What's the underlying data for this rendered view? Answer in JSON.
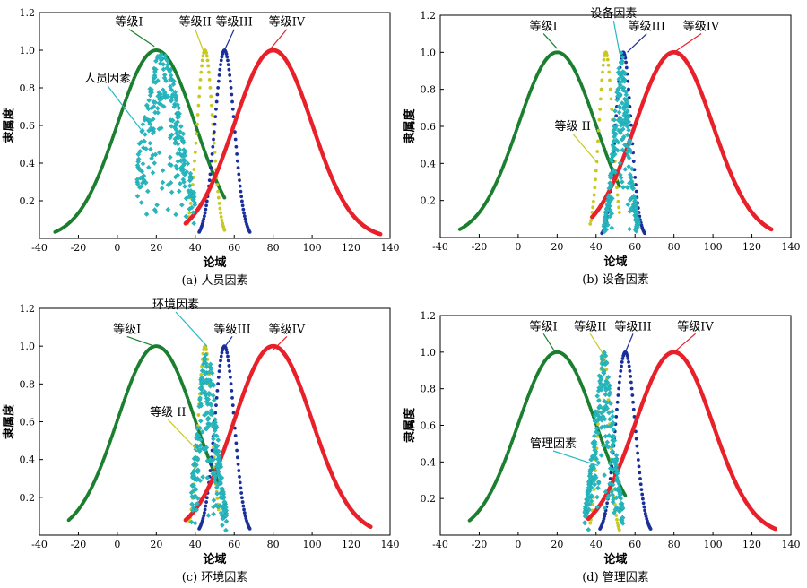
{
  "chart_data": [
    {
      "type": "scatter",
      "caption": "(a) 人员因素",
      "xlabel": "论域",
      "ylabel": "隶属度",
      "xlim": [
        -40,
        140
      ],
      "ylim": [
        0,
        1.2
      ],
      "xticks": [
        -40,
        -20,
        0,
        20,
        40,
        60,
        80,
        100,
        120,
        140
      ],
      "yticks": [
        0.2,
        0.4,
        0.6,
        0.8,
        1.0,
        1.2
      ],
      "yticklabels": [
        "0.2",
        "0.4",
        "0.6",
        "0.8",
        "1.0",
        "1.2"
      ],
      "grade_curves": [
        {
          "label": "等级I",
          "mu": 20,
          "sigma": 20,
          "range": [
            -32,
            55
          ],
          "color": "#1a7f2e"
        },
        {
          "label": "等级II",
          "mu": 45,
          "sigma": 4,
          "range": [
            36,
            55
          ],
          "color": "#c8c81e"
        },
        {
          "label": "等级III",
          "mu": 55,
          "sigma": 5,
          "range": [
            42,
            68
          ],
          "color": "#1a2f9a"
        },
        {
          "label": "等级IV",
          "mu": 80,
          "sigma": 20,
          "range": [
            35,
            135
          ],
          "color": "#e8202a"
        }
      ],
      "factor": {
        "label": "人员因素",
        "mu": 23,
        "sigma": 10,
        "x_range": [
          10,
          40
        ],
        "color": "#25b8c0"
      },
      "annotations": [
        {
          "text": "等级I",
          "x": 6,
          "y": 1.13,
          "ax": 19,
          "ay": 1.02
        },
        {
          "text": "等级II",
          "x": 40,
          "y": 1.13,
          "ax": 44,
          "ay": 1.0
        },
        {
          "text": "等级III",
          "x": 60,
          "y": 1.13,
          "ax": 55,
          "ay": 1.0
        },
        {
          "text": "等级IV",
          "x": 87,
          "y": 1.13,
          "ax": 78,
          "ay": 1.0
        },
        {
          "text": "人员因素",
          "x": -5,
          "y": 0.83,
          "ax": 12,
          "ay": 0.58
        }
      ]
    },
    {
      "type": "scatter",
      "caption": "(b) 设备因素",
      "xlabel": "论域",
      "ylabel": "隶属度",
      "xlim": [
        -40,
        140
      ],
      "ylim": [
        0,
        1.2
      ],
      "xticks": [
        -40,
        -20,
        0,
        20,
        40,
        60,
        80,
        100,
        120,
        140
      ],
      "yticks": [
        0.2,
        0.4,
        0.6,
        0.8,
        1.0,
        1.2
      ],
      "yticklabels": [
        "0.2",
        "0.4",
        "0.6",
        "0.8",
        "1.0",
        "1.2"
      ],
      "grade_curves": [
        {
          "label": "等级I",
          "mu": 20,
          "sigma": 20,
          "range": [
            -30,
            52
          ],
          "color": "#1a7f2e"
        },
        {
          "label": "等级II",
          "mu": 45,
          "sigma": 3.5,
          "range": [
            37,
            52
          ],
          "color": "#c8c81e"
        },
        {
          "label": "等级III",
          "mu": 54,
          "sigma": 4,
          "range": [
            43,
            65
          ],
          "color": "#1a2f9a"
        },
        {
          "label": "等级IV",
          "mu": 80,
          "sigma": 20,
          "range": [
            38,
            130
          ],
          "color": "#e8202a"
        }
      ],
      "factor": {
        "label": "设备因素",
        "mu": 53,
        "sigma": 4,
        "x_range": [
          44,
          62
        ],
        "color": "#25b8c0"
      },
      "annotations": [
        {
          "text": "等级I",
          "x": 13,
          "y": 1.12,
          "ax": 20,
          "ay": 1.02
        },
        {
          "text": "设备因素",
          "x": 49,
          "y": 1.19,
          "ax": 52,
          "ay": 1.0
        },
        {
          "text": "等级III",
          "x": 66,
          "y": 1.12,
          "ax": 56,
          "ay": 1.0
        },
        {
          "text": "等级IV",
          "x": 94,
          "y": 1.12,
          "ax": 80,
          "ay": 1.0
        },
        {
          "text": "等级 II",
          "x": 28,
          "y": 0.58,
          "ax": 41,
          "ay": 0.4
        }
      ]
    },
    {
      "type": "scatter",
      "caption": "(c) 环境因素",
      "xlabel": "论域",
      "ylabel": "隶属度",
      "xlim": [
        -40,
        140
      ],
      "ylim": [
        0,
        1.2
      ],
      "xticks": [
        -40,
        -20,
        0,
        20,
        40,
        60,
        80,
        100,
        120,
        140
      ],
      "yticks": [
        0.2,
        0.4,
        0.6,
        0.8,
        1.0,
        1.2
      ],
      "yticklabels": [
        "0.2",
        "0.4",
        "0.6",
        "0.8",
        "1.0",
        "1.2"
      ],
      "grade_curves": [
        {
          "label": "等级I",
          "mu": 20,
          "sigma": 20,
          "range": [
            -25,
            52
          ],
          "color": "#1a7f2e"
        },
        {
          "label": "等级II",
          "mu": 45,
          "sigma": 3.5,
          "range": [
            37,
            52
          ],
          "color": "#c8c81e"
        },
        {
          "label": "等级III",
          "mu": 55,
          "sigma": 5,
          "range": [
            42,
            68
          ],
          "color": "#1a2f9a"
        },
        {
          "label": "等级IV",
          "mu": 80,
          "sigma": 20,
          "range": [
            35,
            130
          ],
          "color": "#e8202a"
        }
      ],
      "factor": {
        "label": "环境因素",
        "mu": 46,
        "sigma": 5,
        "x_range": [
          38,
          56
        ],
        "color": "#25b8c0"
      },
      "annotations": [
        {
          "text": "等级I",
          "x": 5,
          "y": 1.07,
          "ax": 19,
          "ay": 1.0
        },
        {
          "text": "环境因素",
          "x": 30,
          "y": 1.2,
          "ax": 46,
          "ay": 1.0
        },
        {
          "text": "等级III",
          "x": 59,
          "y": 1.07,
          "ax": 54,
          "ay": 0.98
        },
        {
          "text": "等级IV",
          "x": 87,
          "y": 1.07,
          "ax": 80,
          "ay": 0.98
        },
        {
          "text": "等级 II",
          "x": 26,
          "y": 0.63,
          "ax": 41,
          "ay": 0.45
        }
      ]
    },
    {
      "type": "scatter",
      "caption": "(d) 管理因素",
      "xlabel": "论域",
      "ylabel": "隶属度",
      "xlim": [
        -40,
        140
      ],
      "ylim": [
        0,
        1.2
      ],
      "xticks": [
        -40,
        -20,
        0,
        20,
        40,
        60,
        80,
        100,
        120,
        140
      ],
      "yticks": [
        0.2,
        0.4,
        0.6,
        0.8,
        1.0,
        1.2
      ],
      "yticklabels": [
        "0.2",
        "0.4",
        "0.6",
        "0.8",
        "1.0",
        "1.2"
      ],
      "grade_curves": [
        {
          "label": "等级I",
          "mu": 20,
          "sigma": 20,
          "range": [
            -25,
            55
          ],
          "color": "#1a7f2e"
        },
        {
          "label": "等级II",
          "mu": 44,
          "sigma": 3,
          "range": [
            37,
            52
          ],
          "color": "#c8c81e"
        },
        {
          "label": "等级III",
          "mu": 55,
          "sigma": 5,
          "range": [
            42,
            68
          ],
          "color": "#1a2f9a"
        },
        {
          "label": "等级IV",
          "mu": 80,
          "sigma": 20,
          "range": [
            36,
            132
          ],
          "color": "#e8202a"
        }
      ],
      "factor": {
        "label": "管理因素",
        "mu": 44,
        "sigma": 5,
        "x_range": [
          34,
          54
        ],
        "color": "#25b8c0"
      },
      "annotations": [
        {
          "text": "等级I",
          "x": 13,
          "y": 1.12,
          "ax": 19,
          "ay": 1.0
        },
        {
          "text": "等级II",
          "x": 37,
          "y": 1.12,
          "ax": 43,
          "ay": 1.0
        },
        {
          "text": "等级III",
          "x": 59,
          "y": 1.12,
          "ax": 55,
          "ay": 1.0
        },
        {
          "text": "等级IV",
          "x": 91,
          "y": 1.12,
          "ax": 80,
          "ay": 1.0
        },
        {
          "text": "管理因素",
          "x": 18,
          "y": 0.48,
          "ax": 41,
          "ay": 0.38
        }
      ]
    }
  ]
}
